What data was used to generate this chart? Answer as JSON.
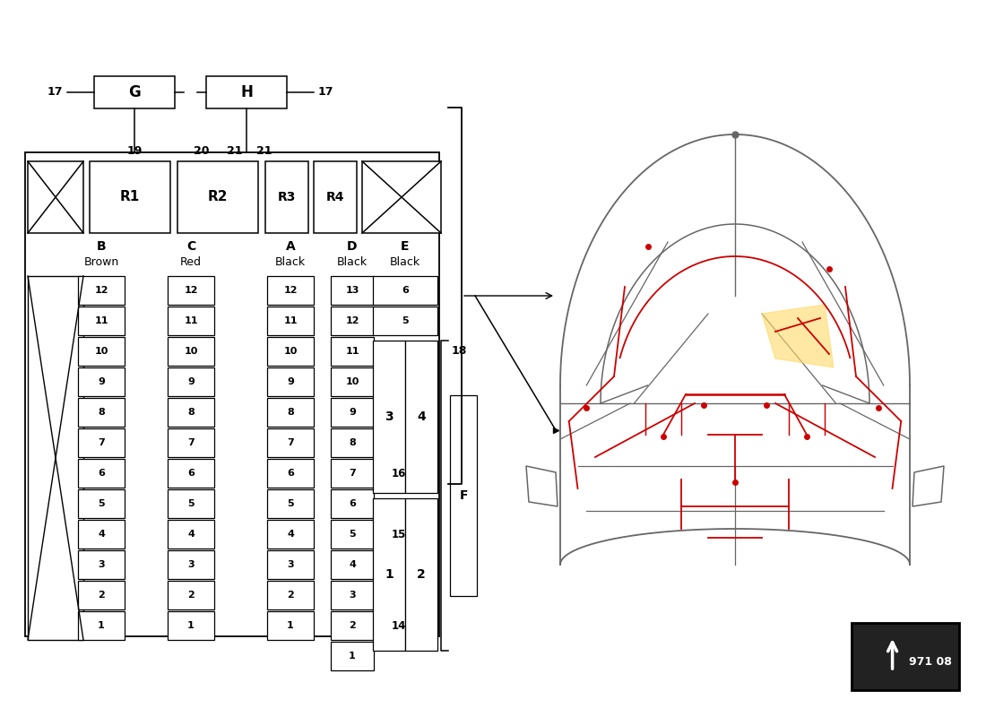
{
  "bg_color": "#ffffff",
  "diagram_color": "#000000",
  "car_color": "#cc0000",
  "highlight_color": "#ffd966",
  "page_code": "971 08",
  "B_pins": [
    12,
    11,
    10,
    9,
    8,
    7,
    6,
    5,
    4,
    3,
    2,
    1
  ],
  "C_pins": [
    12,
    11,
    10,
    9,
    8,
    7,
    6,
    5,
    4,
    3,
    2,
    1
  ],
  "A_pins": [
    12,
    11,
    10,
    9,
    8,
    7,
    6,
    5,
    4,
    3,
    2,
    1
  ],
  "D_pins": [
    13,
    12,
    11,
    10,
    9,
    8,
    7,
    6,
    5,
    4,
    3,
    2,
    1
  ]
}
